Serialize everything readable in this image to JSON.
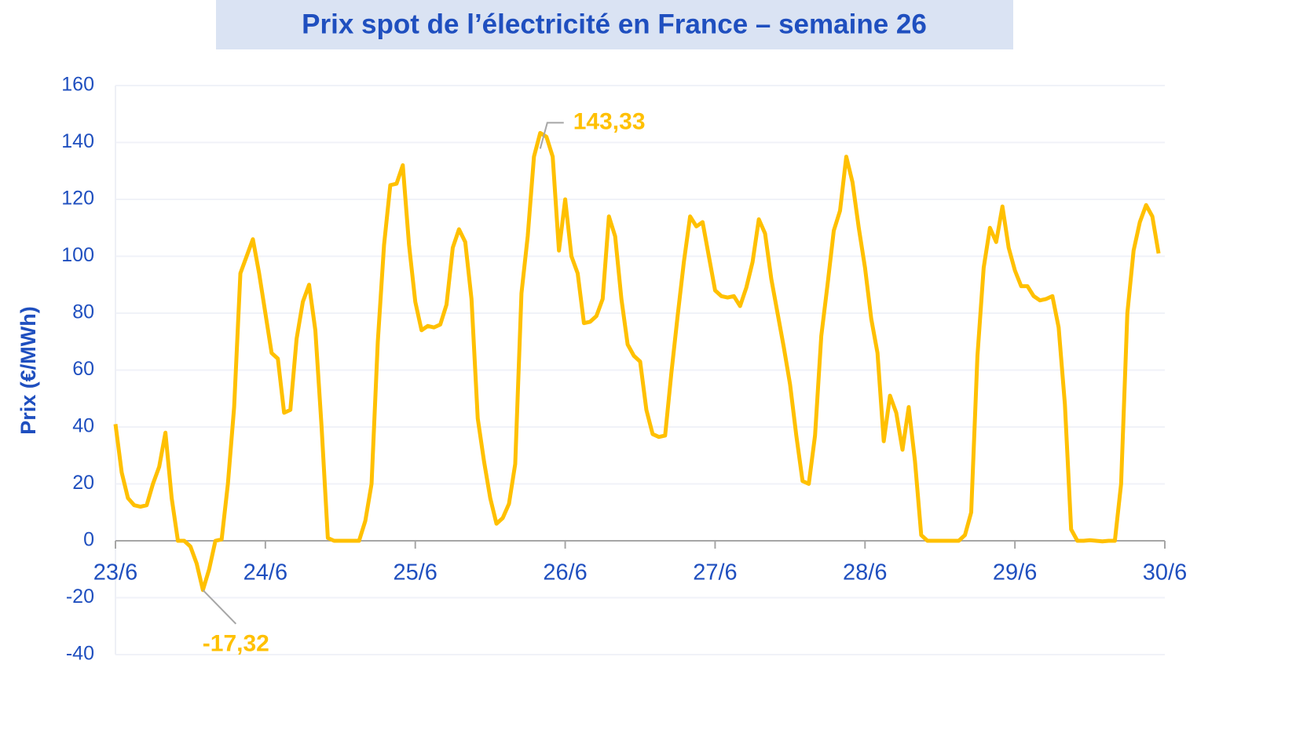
{
  "chart_data": {
    "type": "line",
    "title": "Prix spot de l’électricité en France – semaine 26",
    "ylabel": "Prix (€/MWh)",
    "x": [
      0,
      1,
      2,
      3,
      4,
      5,
      6,
      7,
      8,
      9,
      10,
      11,
      12,
      13,
      14,
      15,
      16,
      17,
      18,
      19,
      20,
      21,
      22,
      23,
      24,
      25,
      26,
      27,
      28,
      29,
      30,
      31,
      32,
      33,
      34,
      35,
      36,
      37,
      38,
      39,
      40,
      41,
      42,
      43,
      44,
      45,
      46,
      47,
      48,
      49,
      50,
      51,
      52,
      53,
      54,
      55,
      56,
      57,
      58,
      59,
      60,
      61,
      62,
      63,
      64,
      65,
      66,
      67,
      68,
      69,
      70,
      71,
      72,
      73,
      74,
      75,
      76,
      77,
      78,
      79,
      80,
      81,
      82,
      83,
      84,
      85,
      86,
      87,
      88,
      89,
      90,
      91,
      92,
      93,
      94,
      95,
      96,
      97,
      98,
      99,
      100,
      101,
      102,
      103,
      104,
      105,
      106,
      107,
      108,
      109,
      110,
      111,
      112,
      113,
      114,
      115,
      116,
      117,
      118,
      119,
      120,
      121,
      122,
      123,
      124,
      125,
      126,
      127,
      128,
      129,
      130,
      131,
      132,
      133,
      134,
      135,
      136,
      137,
      138,
      139,
      140,
      141,
      142,
      143,
      144,
      145,
      146,
      147,
      148,
      149,
      150,
      151,
      152,
      153,
      154,
      155,
      156,
      157,
      158,
      159,
      160,
      161,
      162,
      163,
      164,
      165,
      166,
      167
    ],
    "series": [
      {
        "name": "Prix spot",
        "color": "#ffc000",
        "values": [
          41,
          24,
          15,
          12.5,
          12,
          12.5,
          20,
          26,
          38,
          15,
          0,
          0,
          -2,
          -8,
          -17.32,
          -10,
          0,
          0.5,
          20,
          47,
          94,
          100,
          106,
          94,
          80,
          66,
          64,
          45,
          46,
          71,
          84,
          90,
          74,
          40,
          1,
          0,
          0,
          0,
          0,
          0,
          7,
          20,
          70,
          104,
          125,
          125.5,
          132,
          104,
          84,
          74,
          75.5,
          75,
          76,
          83,
          103,
          109.5,
          105,
          85,
          43,
          28,
          15,
          6,
          8,
          13,
          27,
          87,
          107,
          135,
          143.33,
          142,
          135,
          102,
          120,
          100,
          94,
          76.5,
          77,
          79,
          85,
          114,
          107,
          85,
          69,
          65,
          63,
          46,
          37.5,
          36.5,
          37,
          59,
          79,
          98,
          114,
          110.5,
          112,
          100,
          88,
          86,
          85.5,
          86,
          82.5,
          89,
          98,
          113,
          108,
          92,
          80,
          68,
          55,
          37,
          21,
          20,
          37,
          72,
          90,
          109,
          116,
          135,
          126,
          110,
          96,
          78,
          66,
          35,
          51,
          45,
          32,
          47,
          28,
          2,
          0,
          0,
          0,
          0,
          0,
          0,
          2,
          10,
          65,
          96,
          110,
          105,
          117.5,
          103,
          95,
          89.5,
          89.5,
          86,
          84.5,
          85,
          86,
          75,
          48,
          4,
          0,
          0,
          0.2,
          0,
          -0.2,
          0,
          0,
          20,
          80,
          102,
          112,
          118,
          114,
          101
        ]
      }
    ],
    "xlim": [
      0,
      168
    ],
    "xticks": [
      {
        "value": 0,
        "label": "23/6"
      },
      {
        "value": 24,
        "label": "24/6"
      },
      {
        "value": 48,
        "label": "25/6"
      },
      {
        "value": 72,
        "label": "26/6"
      },
      {
        "value": 96,
        "label": "27/6"
      },
      {
        "value": 120,
        "label": "28/6"
      },
      {
        "value": 144,
        "label": "29/6"
      },
      {
        "value": 168,
        "label": "30/6"
      }
    ],
    "ylim": [
      -40,
      160
    ],
    "yticks": [
      -40,
      -20,
      0,
      20,
      40,
      60,
      80,
      100,
      120,
      140,
      160
    ],
    "grid": true,
    "annotations": [
      {
        "text": "143,33",
        "x": 68,
        "y": 143.33
      },
      {
        "text": "-17,32",
        "x": 14,
        "y": -17.32
      }
    ]
  }
}
